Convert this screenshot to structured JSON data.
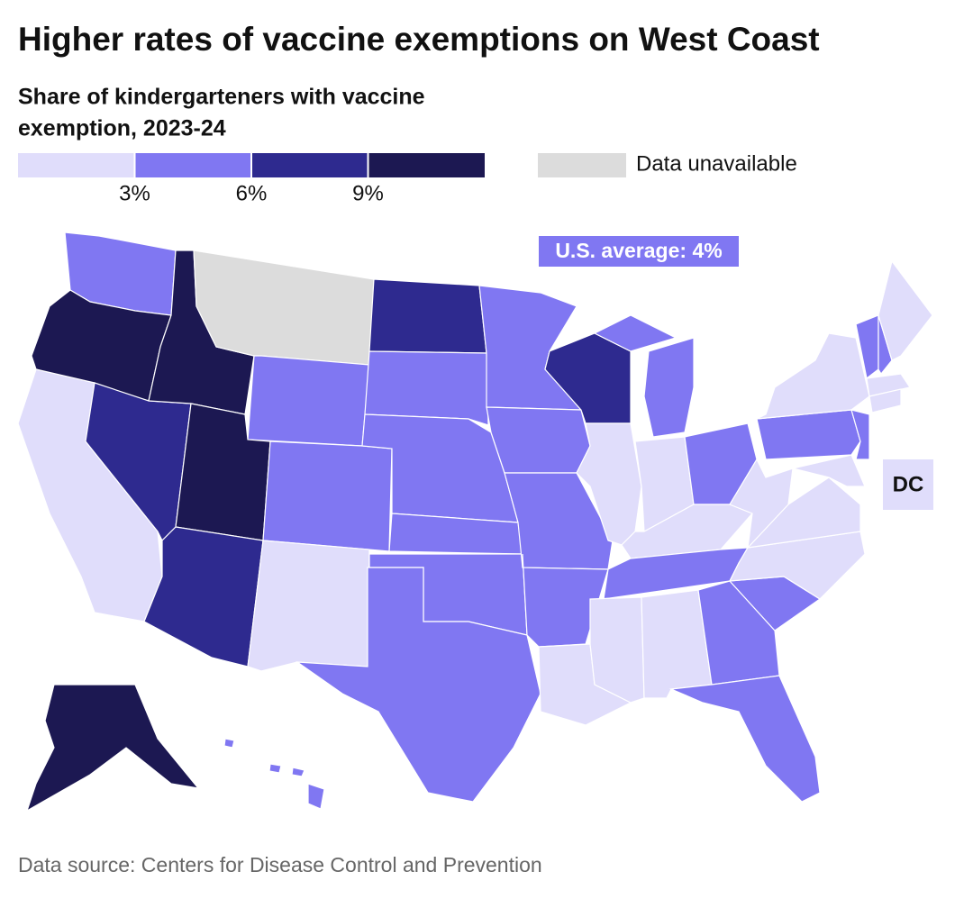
{
  "title": "Higher rates of vaccine exemptions on West Coast",
  "subtitle": [
    "Share of kindergarteners with vaccine",
    "exemption, 2023-24"
  ],
  "legend": {
    "colors": [
      "#e0ddfb",
      "#8077f2",
      "#2e2a8f",
      "#1c1852"
    ],
    "ticks": [
      {
        "value": 3,
        "label": "3%"
      },
      {
        "value": 6,
        "label": "6%"
      },
      {
        "value": 9,
        "label": "9%"
      }
    ],
    "unavailable_label": "Data unavailable",
    "unavailable_color": "#dcdcdc"
  },
  "annotation": "U.S. average: 4%",
  "regions": [
    1,
    3,
    0,
    2,
    3,
    null,
    1,
    3,
    2,
    1,
    0,
    2,
    1,
    1,
    1,
    1,
    1,
    1,
    1,
    1,
    1,
    0,
    2,
    0,
    1,
    0,
    1,
    0,
    1,
    0,
    0,
    1,
    1,
    1,
    0,
    0,
    0,
    1,
    0,
    1,
    0,
    1,
    1,
    0,
    0,
    0,
    3,
    1
  ],
  "dc": {
    "label": "DC",
    "value": 0
  },
  "source": "Data source: Centers for Disease Control and Prevention"
}
